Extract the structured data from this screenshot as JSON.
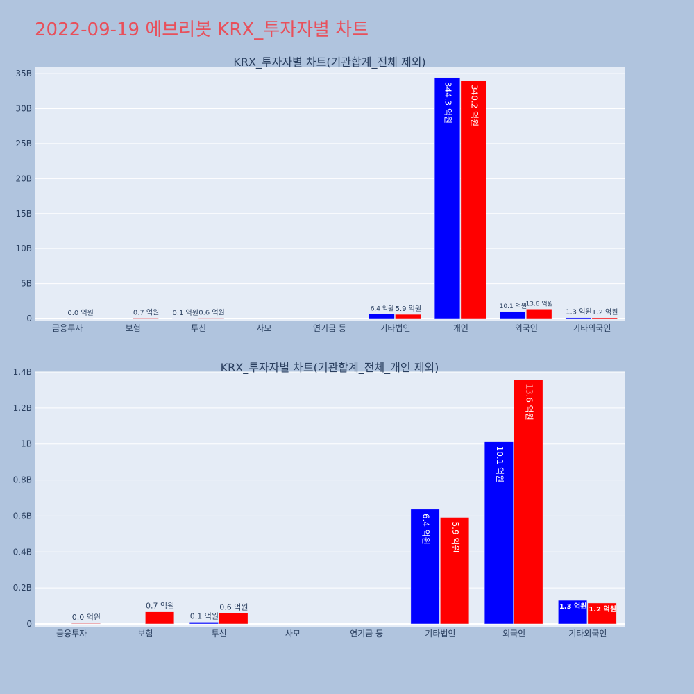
{
  "page_title": "2022-09-19 에브리봇 KRX_투자자별 차트",
  "colors": {
    "page_background": "#b0c4de",
    "plot_background": "#e5ecf6",
    "title_color": "#e8505b",
    "series_1": "#0000ff",
    "series_2": "#ff0000",
    "gridline": "#ffffff"
  },
  "chart_data": [
    {
      "type": "bar",
      "title": "KRX_투자자별 차트(기관합계_전체 제외)",
      "categories": [
        "금융투자",
        "보험",
        "투신",
        "사모",
        "연기금 등",
        "기타법인",
        "개인",
        "외국인",
        "기타외국인"
      ],
      "ylim": [
        0,
        36000000000
      ],
      "yticks": [
        0,
        5000000000,
        10000000000,
        15000000000,
        20000000000,
        25000000000,
        30000000000,
        35000000000
      ],
      "ytick_labels": [
        "0",
        "5B",
        "10B",
        "15B",
        "20B",
        "25B",
        "30B",
        "35B"
      ],
      "grid": true,
      "series": [
        {
          "color": "#0000ff",
          "values": [
            0,
            0,
            10000000,
            0,
            0,
            640000000,
            34430000000,
            1010000000,
            130000000
          ],
          "labels": [
            "",
            "",
            "0.1 억원",
            "",
            "",
            "6.4 억원",
            "344.3 억원",
            "10.1 억원",
            "1.3 억원"
          ]
        },
        {
          "color": "#ff0000",
          "values": [
            3000000,
            70000000,
            60000000,
            0,
            0,
            590000000,
            34020000000,
            1360000000,
            120000000
          ],
          "labels": [
            "0.0 억원",
            "0.7 억원",
            "0.6 억원",
            "",
            "",
            "5.9 억원",
            "340.2 억원",
            "13.6 억원",
            "1.2 억원"
          ]
        }
      ]
    },
    {
      "type": "bar",
      "title": "KRX_투자자별 차트(기관합계_전체_개인 제외)",
      "categories": [
        "금융투자",
        "보험",
        "투신",
        "사모",
        "연기금 등",
        "기타법인",
        "외국인",
        "기타외국인"
      ],
      "ylim": [
        0,
        1400000000
      ],
      "yticks": [
        0,
        200000000,
        400000000,
        600000000,
        800000000,
        1000000000,
        1200000000,
        1400000000
      ],
      "ytick_labels": [
        "0",
        "0.2B",
        "0.4B",
        "0.6B",
        "0.8B",
        "1B",
        "1.2B",
        "1.4B"
      ],
      "grid": true,
      "series": [
        {
          "color": "#0000ff",
          "values": [
            0,
            0,
            10000000,
            0,
            0,
            637000000,
            1012000000,
            131000000
          ],
          "labels": [
            "",
            "",
            "0.1 억원",
            "",
            "",
            "6.4 억원",
            "10.1 억원",
            "1.3 억원"
          ]
        },
        {
          "color": "#ff0000",
          "values": [
            3000000,
            67000000,
            60000000,
            0,
            0,
            592000000,
            1357000000,
            116000000
          ],
          "labels": [
            "0.0 억원",
            "0.7 억원",
            "0.6 억원",
            "",
            "",
            "5.9 억원",
            "13.6 억원",
            "1.2 억원"
          ]
        }
      ]
    }
  ]
}
